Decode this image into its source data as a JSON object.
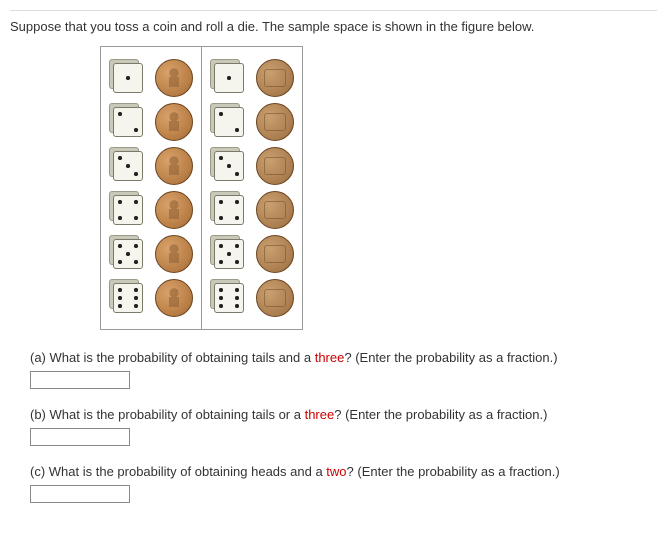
{
  "intro": "Suppose that you toss a coin and roll a die. The sample space is shown in the figure below.",
  "dice_values": [
    1,
    2,
    3,
    4,
    5,
    6
  ],
  "columns": [
    {
      "coin_side": "heads"
    },
    {
      "coin_side": "tails"
    }
  ],
  "questions": {
    "a": {
      "label": "(a) What is the probability of obtaining tails and a ",
      "highlight": "three",
      "after": "? (Enter the probability as a fraction.)"
    },
    "b": {
      "label": "(b) What is the probability of obtaining tails or a ",
      "highlight": "three",
      "after": "? (Enter the probability as a fraction.)"
    },
    "c": {
      "label": "(c) What is the probability of obtaining heads and a ",
      "highlight": "two",
      "after": "? (Enter the probability as a fraction.)"
    }
  }
}
